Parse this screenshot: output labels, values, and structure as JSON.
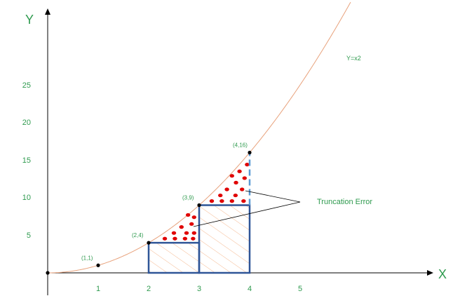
{
  "chart_data": {
    "type": "line",
    "xlabel": "X",
    "ylabel": "Y",
    "curve_label": "Y=x2",
    "x_ticks": [
      "1",
      "2",
      "3",
      "4",
      "5"
    ],
    "y_ticks": [
      "5",
      "10",
      "15",
      "20",
      "25"
    ],
    "xlim": [
      0,
      7.7
    ],
    "ylim": [
      0,
      29
    ],
    "curve": {
      "fn": "x^2",
      "from": 0,
      "to": 6.0
    },
    "points": [
      {
        "x": 0,
        "y": 0,
        "label": ""
      },
      {
        "x": 1,
        "y": 1,
        "label": "(1,1)"
      },
      {
        "x": 2,
        "y": 4,
        "label": "(2,4)"
      },
      {
        "x": 3,
        "y": 9,
        "label": "(3,9)"
      },
      {
        "x": 4,
        "y": 16,
        "label": "(4,16)"
      }
    ],
    "rectangles": [
      {
        "x0": 2,
        "x1": 3,
        "height": 4
      },
      {
        "x0": 3,
        "x1": 4,
        "height": 9
      }
    ],
    "annotation": "Truncation Error",
    "colors": {
      "axis": "#000000",
      "curve": "#e8a27c",
      "rect": "#2f5597",
      "dashed": "#5b9bd5",
      "hatch": "#f4b184",
      "error_dots": "#e00000",
      "text": "#2e9a4e"
    }
  }
}
